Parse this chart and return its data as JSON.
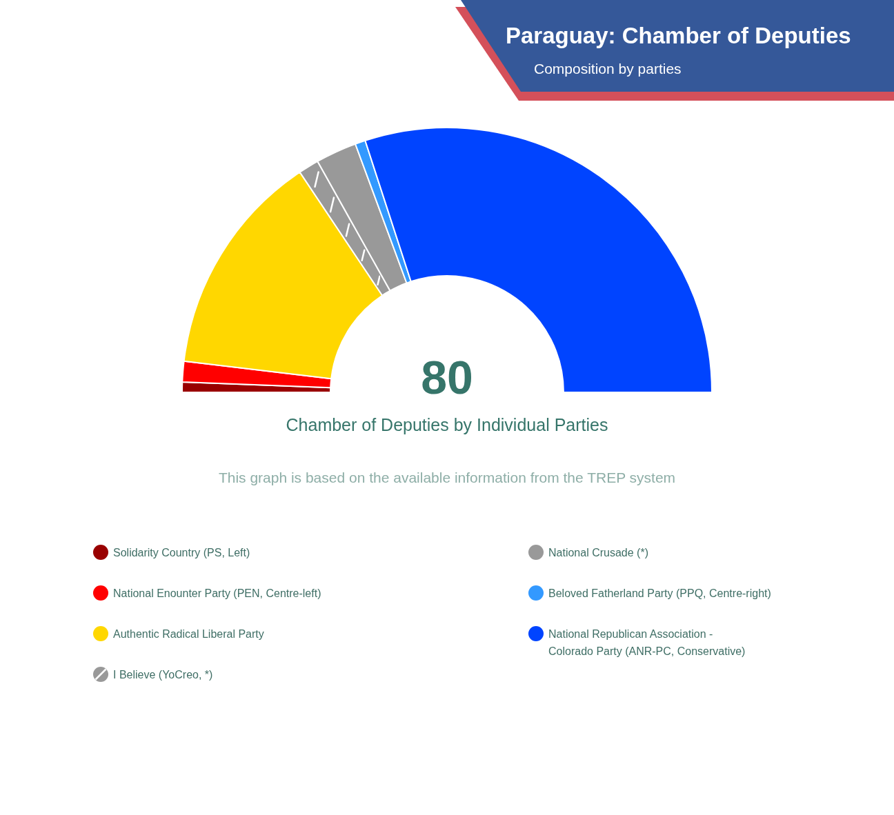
{
  "chart_data": {
    "type": "donut",
    "title": "Paraguay: Chamber of Deputies",
    "subtitle": "Composition by parties",
    "categories": [
      "Solidarity Country (PS, Left)",
      "National Enounter Party (PEN, Centre-left)",
      "Authentic Radical Liberal Party",
      "I Believe (YoCreo, *)",
      "National Crusade (*)",
      "Beloved Fatherland Party (PPQ, Centre-right)",
      "National Republican Association -\nColorado Party (ANR-PC, Conservative)"
    ],
    "values": [
      1.25,
      2.5,
      27.5,
      2.5,
      5,
      1.25,
      60
    ],
    "colors": [
      "#990000",
      "#ff0000",
      "#ffd700",
      "#999999",
      "#999999",
      "#3399ff",
      "#0044ff"
    ],
    "legend": "bottom",
    "annotations": [
      "80",
      "Chamber of Deputies by Individual Parties",
      "This graph is based on the available information from the TREP system"
    ]
  }
}
